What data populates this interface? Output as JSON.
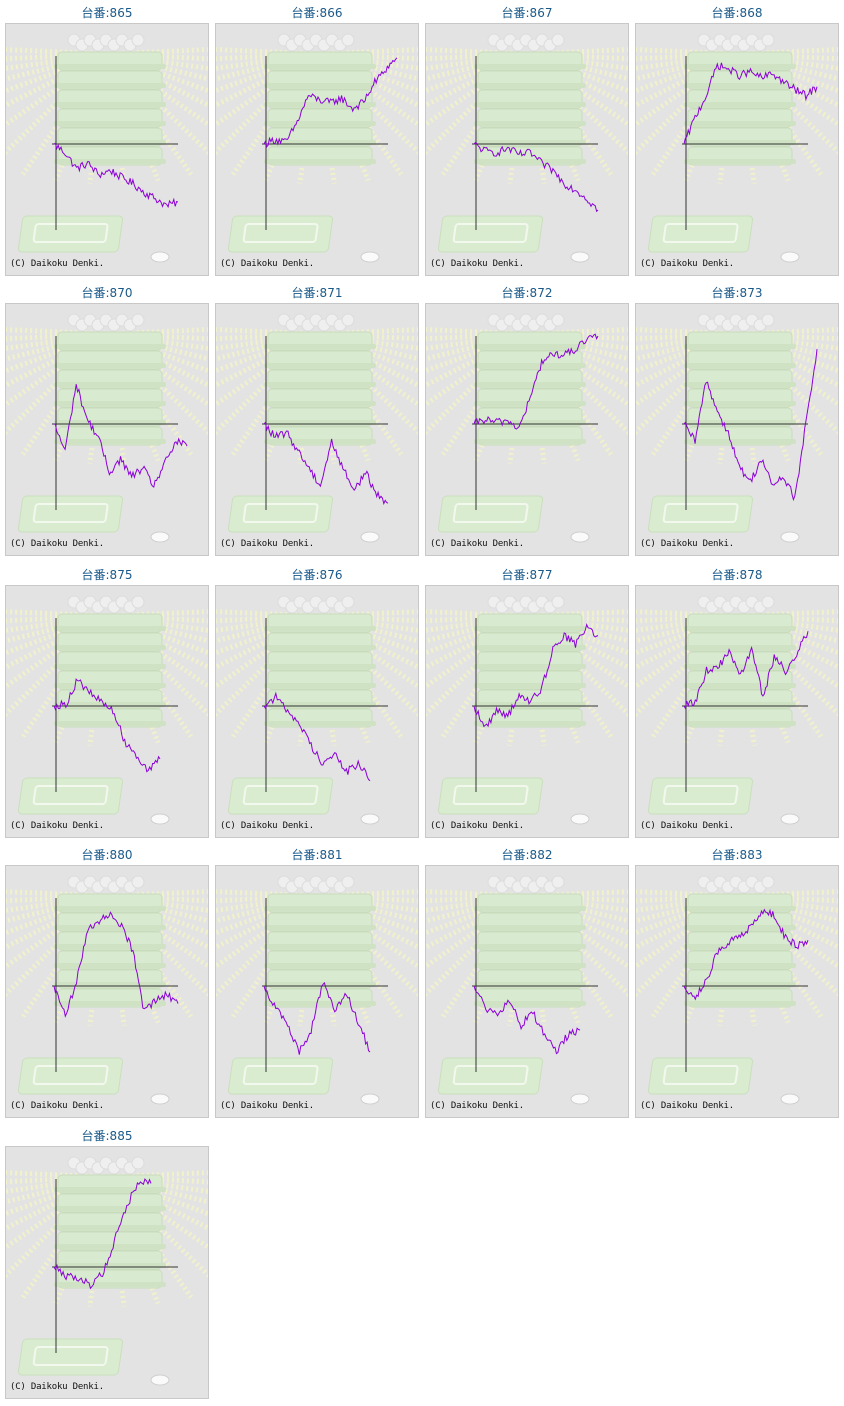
{
  "page": {
    "copyright": "(C) Daikoku Denki."
  },
  "theme": {
    "line_color": "#8b00d6",
    "title_color": "#1a5a8a",
    "panel_bg": "#e3e3e3"
  },
  "machines": [
    {
      "label": "台番:865",
      "trend": [
        0,
        -0.1,
        -0.28,
        -0.22,
        -0.35,
        -0.3,
        -0.38,
        -0.45,
        -0.55,
        -0.62,
        -0.7,
        -0.66
      ]
    },
    {
      "label": "台番:866",
      "trend": [
        0,
        0.05,
        0.02,
        0.25,
        0.55,
        0.5,
        0.47,
        0.52,
        0.4,
        0.48,
        0.7,
        0.85,
        0.98
      ]
    },
    {
      "label": "台番:867",
      "trend": [
        0,
        -0.08,
        -0.1,
        -0.05,
        -0.12,
        -0.1,
        -0.22,
        -0.3,
        -0.45,
        -0.52,
        -0.62,
        -0.75
      ]
    },
    {
      "label": "台番:868",
      "trend": [
        0,
        0.3,
        0.55,
        0.9,
        0.85,
        0.78,
        0.82,
        0.75,
        0.8,
        0.7,
        0.62,
        0.55,
        0.65
      ]
    },
    {
      "label": "台番:870",
      "trend": [
        0,
        -0.3,
        0.45,
        0.05,
        -0.15,
        -0.55,
        -0.4,
        -0.6,
        -0.5,
        -0.7,
        -0.45,
        -0.2,
        -0.25
      ]
    },
    {
      "label": "台番:871",
      "trend": [
        0,
        -0.15,
        -0.1,
        -0.3,
        -0.5,
        -0.7,
        -0.2,
        -0.5,
        -0.75,
        -0.55,
        -0.8,
        -0.9
      ]
    },
    {
      "label": "台番:872",
      "trend": [
        0,
        0.05,
        0.02,
        0.04,
        -0.05,
        0.3,
        0.7,
        0.8,
        0.78,
        0.85,
        0.95,
        1.0
      ]
    },
    {
      "label": "台番:873",
      "trend": [
        0,
        -0.2,
        0.5,
        0.15,
        -0.1,
        -0.5,
        -0.65,
        -0.4,
        -0.7,
        -0.6,
        -0.85,
        0.0,
        0.85
      ]
    },
    {
      "label": "台番:875",
      "trend": [
        0,
        0.02,
        0.3,
        0.15,
        0.05,
        -0.05,
        -0.4,
        -0.55,
        -0.75,
        -0.6
      ]
    },
    {
      "label": "台番:876",
      "trend": [
        0,
        0.1,
        -0.05,
        -0.2,
        -0.45,
        -0.65,
        -0.55,
        -0.75,
        -0.65,
        -0.85
      ]
    },
    {
      "label": "台番:877",
      "trend": [
        0,
        -0.25,
        -0.05,
        -0.1,
        0.1,
        0.05,
        0.2,
        0.65,
        0.8,
        0.7,
        0.9,
        0.8
      ]
    },
    {
      "label": "台番:878",
      "trend": [
        0,
        0.05,
        0.4,
        0.45,
        0.6,
        0.35,
        0.65,
        0.1,
        0.55,
        0.4,
        0.6,
        0.85
      ]
    },
    {
      "label": "台番:880",
      "trend": [
        0,
        -0.35,
        0.05,
        0.65,
        0.75,
        0.8,
        0.7,
        0.4,
        -0.3,
        -0.15,
        -0.1,
        -0.2
      ]
    },
    {
      "label": "台番:881",
      "trend": [
        0,
        -0.25,
        -0.45,
        -0.75,
        -0.5,
        0.05,
        -0.3,
        -0.1,
        -0.4,
        -0.75
      ]
    },
    {
      "label": "台番:882",
      "trend": [
        0,
        -0.25,
        -0.35,
        -0.15,
        -0.45,
        -0.3,
        -0.55,
        -0.75,
        -0.55,
        -0.5
      ]
    },
    {
      "label": "台番:883",
      "trend": [
        0,
        -0.12,
        0.05,
        0.4,
        0.5,
        0.55,
        0.7,
        0.85,
        0.8,
        0.55,
        0.45,
        0.52
      ]
    },
    {
      "label": "台番:885",
      "trend": [
        0,
        -0.1,
        -0.12,
        -0.2,
        -0.08,
        0.3,
        0.7,
        0.98,
        0.95
      ]
    }
  ]
}
